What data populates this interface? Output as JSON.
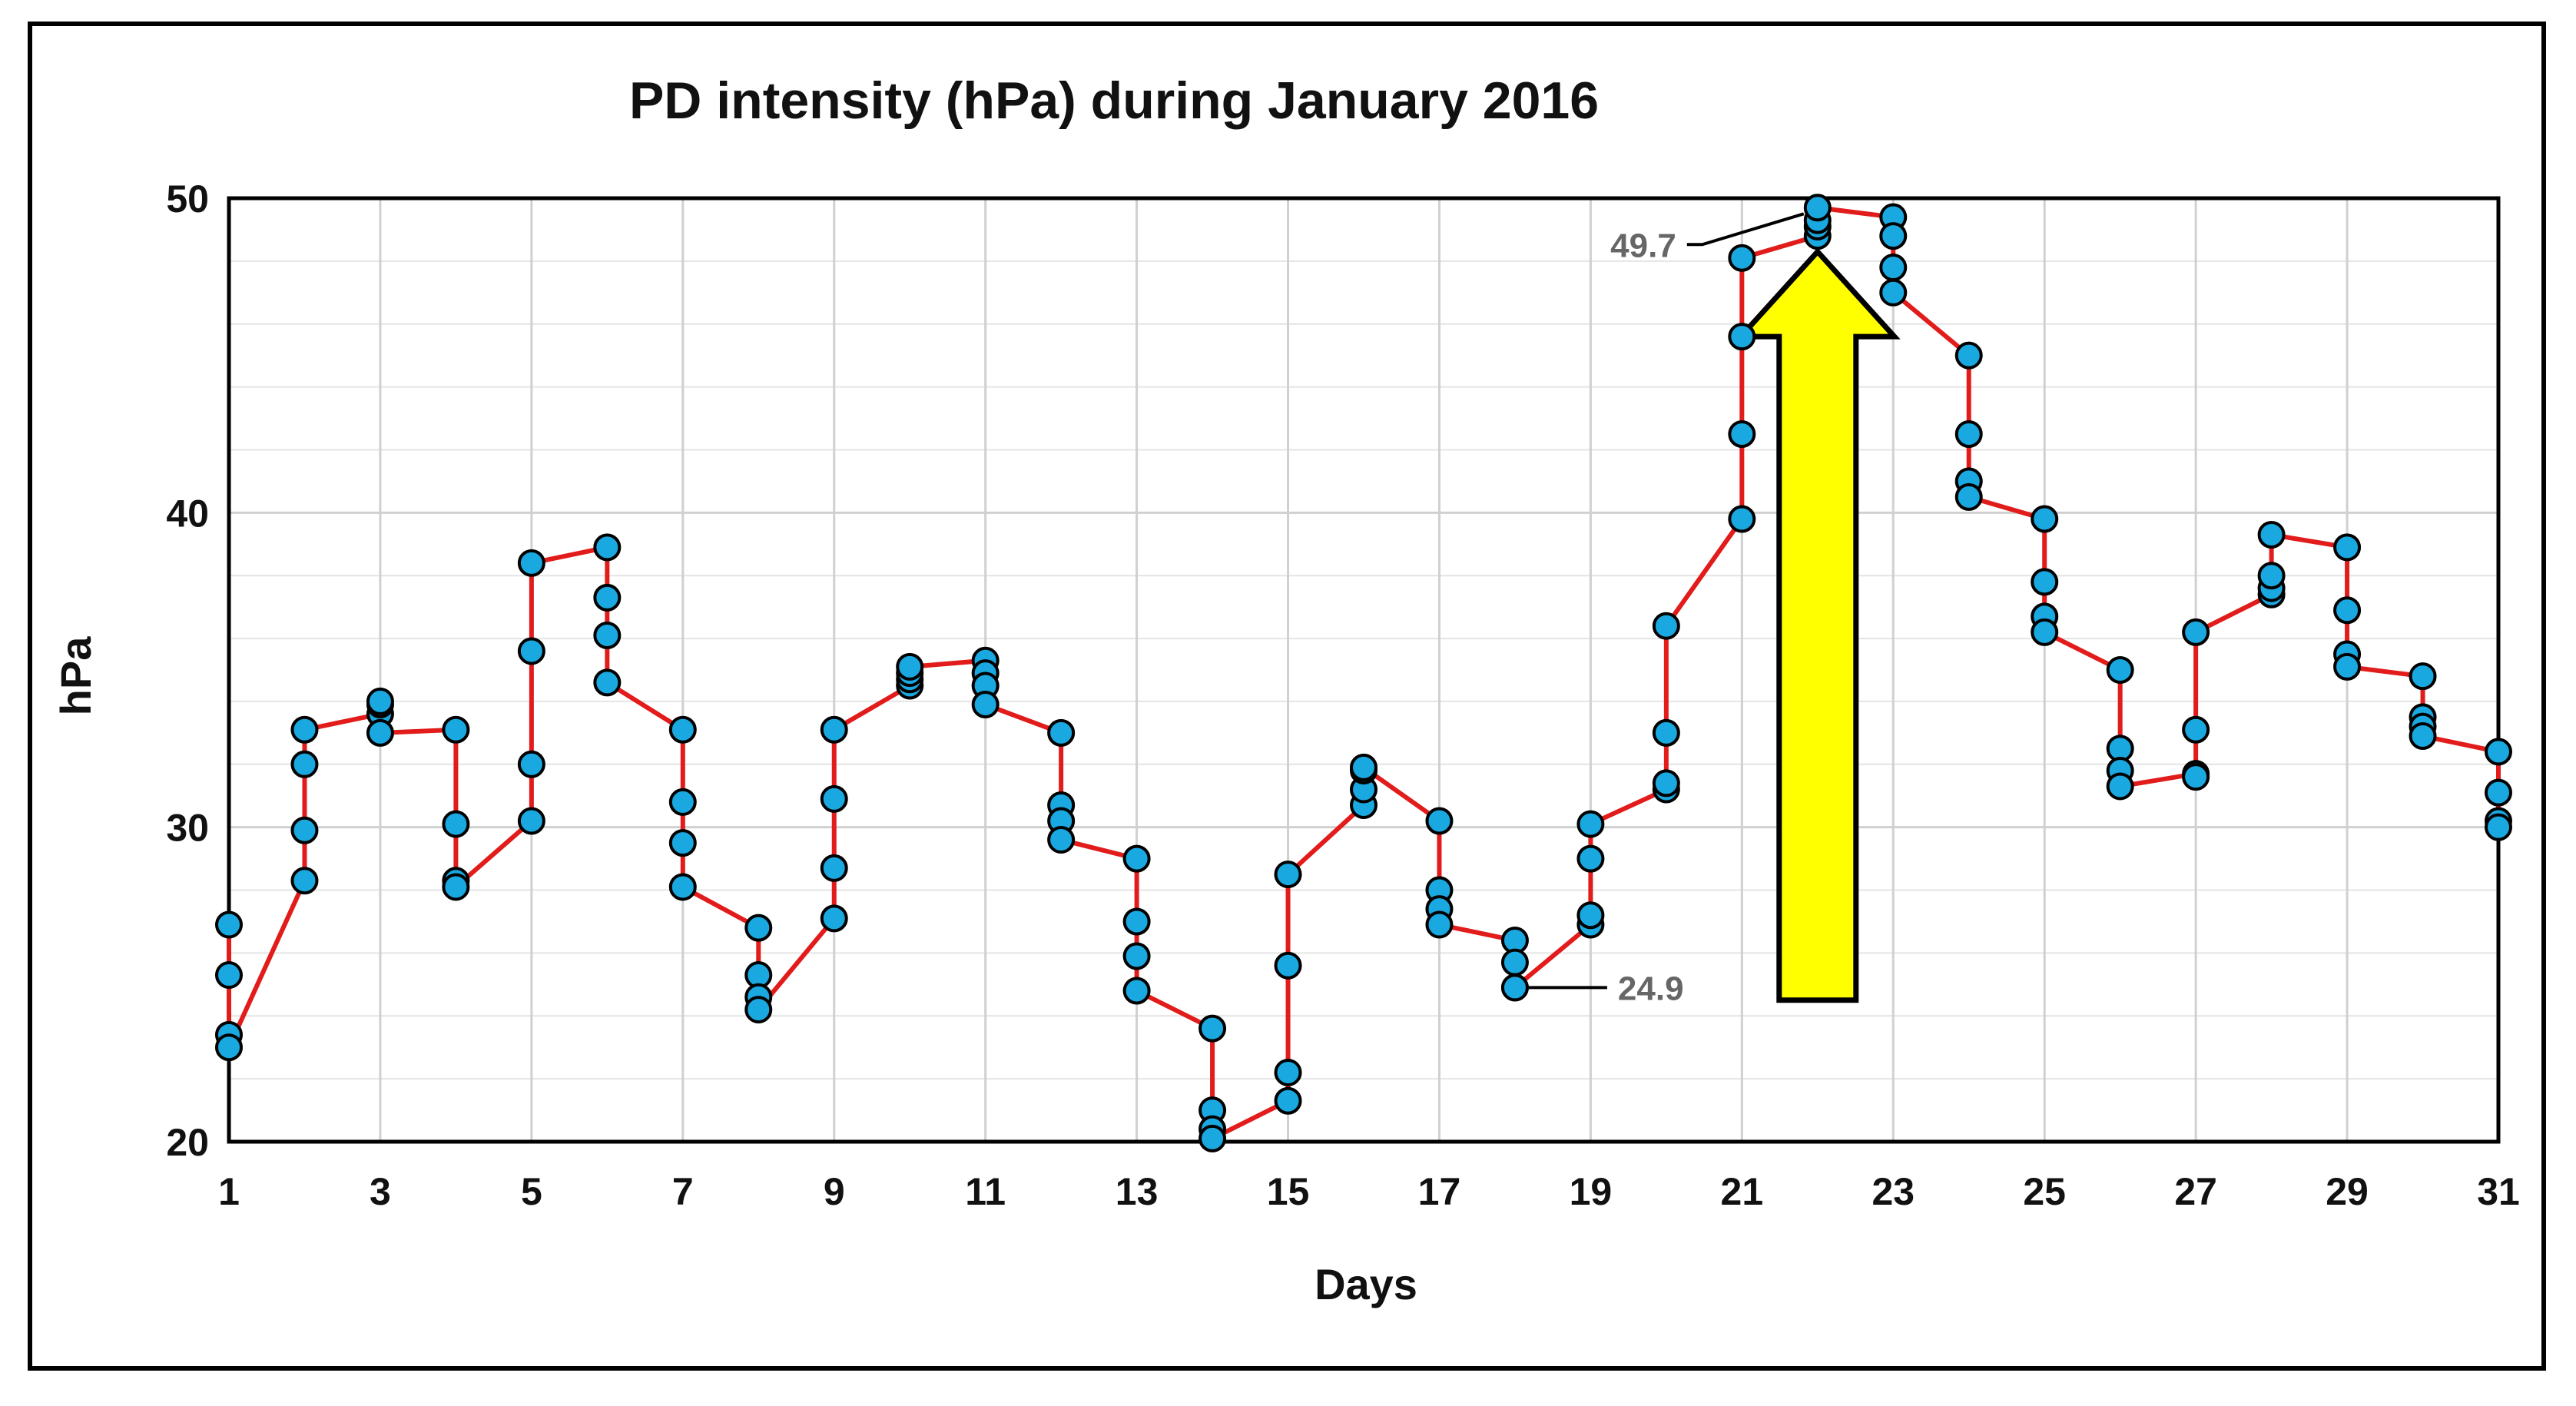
{
  "chart_data": {
    "type": "line",
    "title": "PD intensity (hPa) during January 2016",
    "xlabel": "Days",
    "ylabel": "hPa",
    "xlim": [
      1,
      31
    ],
    "ylim": [
      20,
      50
    ],
    "x_ticks": [
      1,
      3,
      5,
      7,
      9,
      11,
      13,
      15,
      17,
      19,
      21,
      23,
      25,
      27,
      29,
      31
    ],
    "y_ticks": [
      20,
      30,
      40,
      50
    ],
    "grid": true,
    "line_color": "#e21b1b",
    "marker_color": "#1aa8e0",
    "arrow_color": "#ffff00",
    "series": [
      {
        "name": "PD intensity",
        "x": [
          1,
          1,
          1,
          1,
          2,
          2,
          2,
          2,
          3,
          3,
          3,
          3,
          4,
          4,
          4,
          4,
          5,
          5,
          5,
          5,
          6,
          6,
          6,
          6,
          7,
          7,
          7,
          7,
          8,
          8,
          8,
          8,
          9,
          9,
          9,
          9,
          10,
          10,
          10,
          10,
          11,
          11,
          11,
          11,
          12,
          12,
          12,
          12,
          13,
          13,
          13,
          13,
          14,
          14,
          14,
          14,
          15,
          15,
          15,
          15,
          16,
          16,
          16,
          16,
          17,
          17,
          17,
          17,
          18,
          18,
          18,
          18,
          19,
          19,
          19,
          19,
          20,
          20,
          20,
          20,
          21,
          21,
          21,
          21,
          22,
          22,
          22,
          22,
          23,
          23,
          23,
          23,
          24,
          24,
          24,
          24,
          25,
          25,
          25,
          25,
          26,
          26,
          26,
          26,
          27,
          27,
          27,
          27,
          28,
          28,
          28,
          28,
          29,
          29,
          29,
          29,
          30,
          30,
          30,
          30,
          31,
          31,
          31,
          31
        ],
        "values": [
          26.9,
          25.3,
          23.4,
          23.0,
          28.3,
          29.9,
          32.0,
          33.1,
          33.6,
          33.9,
          34.0,
          33.0,
          33.1,
          30.1,
          28.3,
          28.1,
          30.2,
          32.0,
          35.6,
          38.4,
          38.9,
          37.3,
          36.1,
          34.6,
          33.1,
          30.8,
          29.5,
          28.1,
          26.8,
          25.3,
          24.6,
          24.2,
          27.1,
          28.7,
          30.9,
          33.1,
          34.5,
          34.7,
          34.9,
          35.1,
          35.3,
          34.9,
          34.5,
          33.9,
          33.0,
          30.7,
          30.2,
          29.6,
          29.0,
          27.0,
          25.9,
          24.8,
          23.6,
          21.0,
          20.4,
          20.1,
          21.3,
          22.2,
          25.6,
          28.5,
          30.7,
          31.2,
          31.8,
          31.9,
          30.2,
          28.0,
          27.4,
          26.9,
          26.4,
          25.7,
          24.9,
          24.9,
          26.9,
          27.2,
          29.0,
          30.1,
          31.2,
          31.4,
          33.0,
          36.4,
          39.8,
          42.5,
          45.6,
          48.1,
          48.8,
          49.1,
          49.3,
          49.7,
          49.4,
          48.8,
          47.8,
          47.0,
          45.0,
          42.5,
          41.0,
          40.5,
          39.8,
          37.8,
          36.7,
          36.2,
          35.0,
          32.5,
          31.8,
          31.3,
          31.7,
          31.6,
          33.1,
          36.2,
          37.4,
          37.6,
          38.0,
          39.3,
          38.9,
          36.9,
          35.5,
          35.1,
          34.8,
          33.5,
          33.2,
          32.9,
          32.4,
          31.1,
          30.2,
          30.0
        ]
      }
    ],
    "annotations": [
      {
        "text": "49.7",
        "x": 22,
        "y": 49.7
      },
      {
        "text": "24.9",
        "x": 18,
        "y": 24.9
      }
    ]
  }
}
